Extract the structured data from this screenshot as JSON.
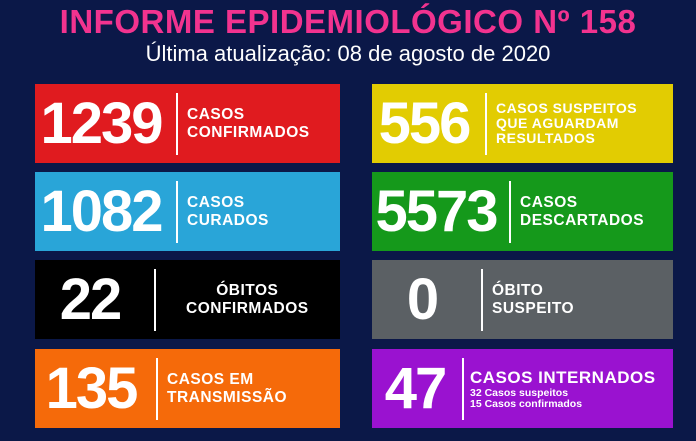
{
  "header": {
    "title": "INFORME EPIDEMIOLÓGICO Nº 158",
    "subtitle": "Última atualização: 08 de agosto de 2020"
  },
  "colors": {
    "background": "#0b1848",
    "title": "#f2338f"
  },
  "cards": [
    {
      "value": "1239",
      "lines": [
        "CASOS",
        "CONFIRMADOS"
      ],
      "color": "#e01b1f"
    },
    {
      "value": "556",
      "lines": [
        "CASOS SUSPEITOS",
        "QUE AGUARDAM",
        "RESULTADOS"
      ],
      "color": "#e2cc02"
    },
    {
      "value": "1082",
      "lines": [
        "CASOS",
        "CURADOS"
      ],
      "color": "#29a5d8"
    },
    {
      "value": "5573",
      "lines": [
        "CASOS",
        "DESCARTADOS"
      ],
      "color": "#15991b"
    },
    {
      "value": "22",
      "lines": [
        "ÓBITOS",
        "CONFIRMADOS"
      ],
      "color": "#000000"
    },
    {
      "value": "0",
      "lines": [
        "ÓBITO",
        "SUSPEITO"
      ],
      "color": "#5b6064"
    },
    {
      "value": "135",
      "lines": [
        "CASOS EM",
        "TRANSMISSÃO"
      ],
      "color": "#f56a0a"
    },
    {
      "value": "47",
      "lines": [
        "CASOS INTERNADOS"
      ],
      "details": [
        "32 Casos suspeitos",
        "15 Casos confirmados"
      ],
      "color": "#9a12d0"
    }
  ]
}
